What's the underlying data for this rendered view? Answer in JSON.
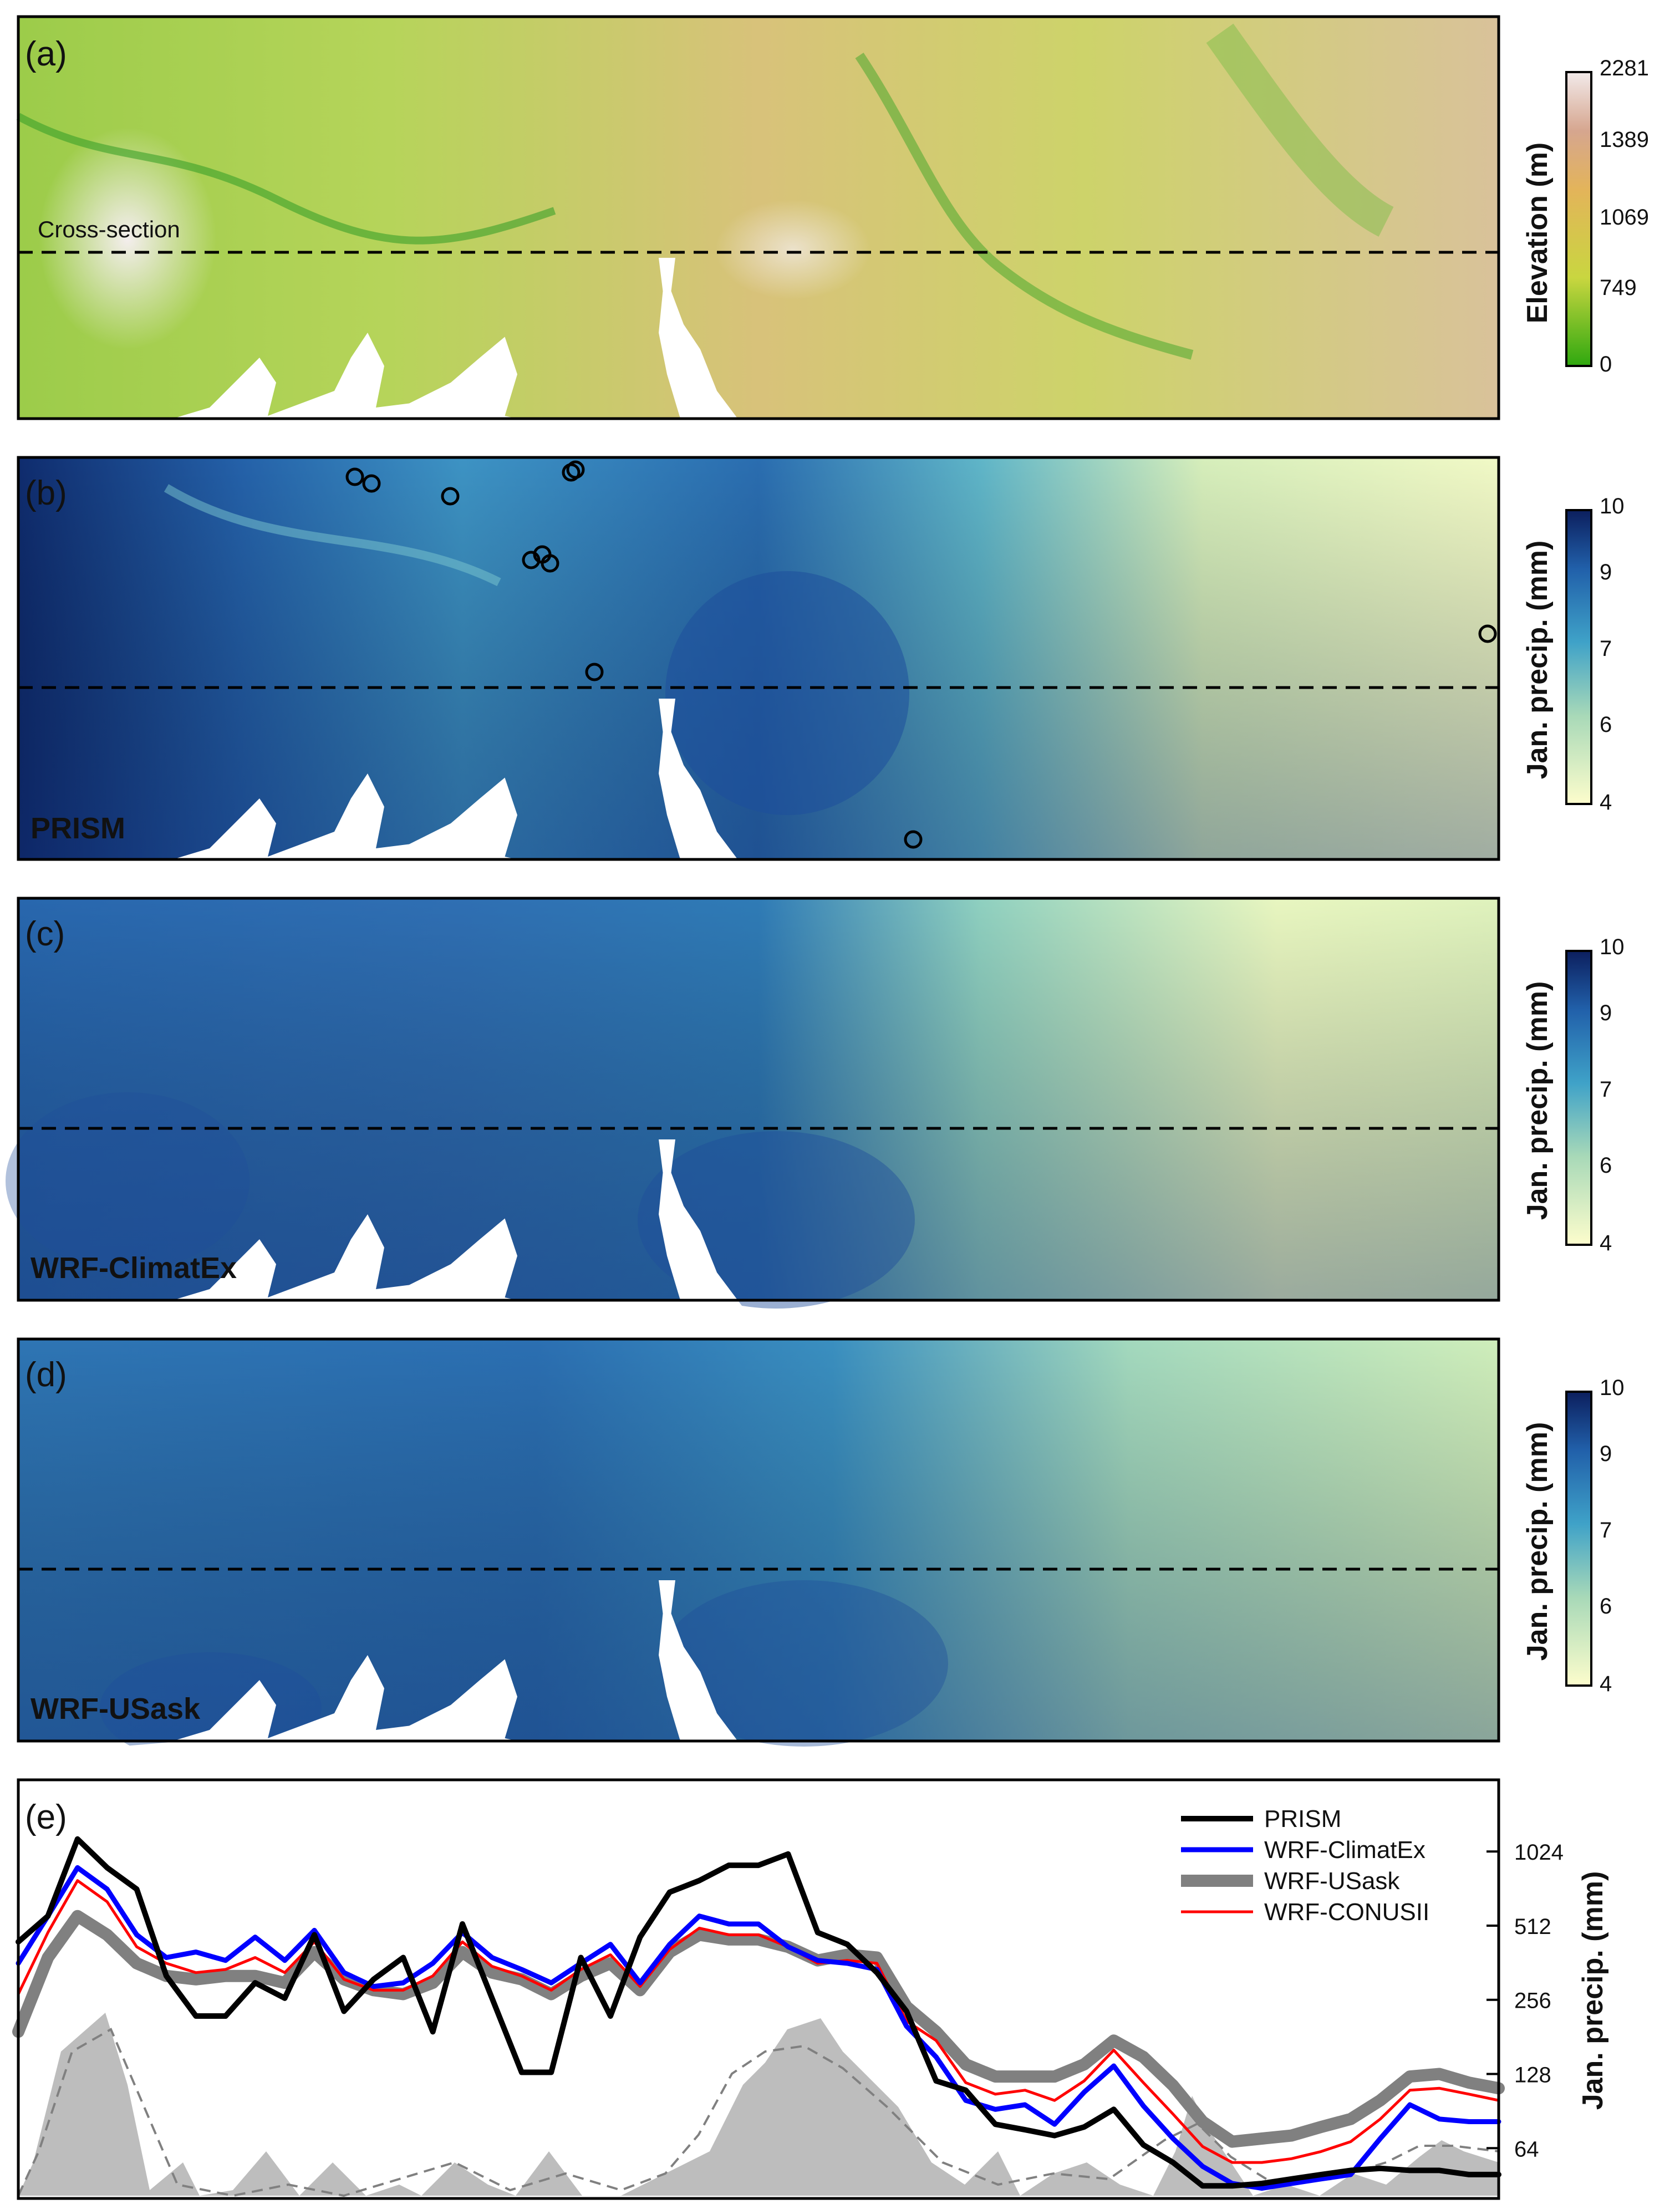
{
  "panels": {
    "a": {
      "letter": "(a)",
      "cross_section_label": "Cross-section",
      "colorbar_title": "Elevation (m)",
      "colorbar_ticks": [
        "2281",
        "1389",
        "1069",
        "749",
        "0"
      ]
    },
    "b": {
      "letter": "(b)",
      "model_label": "PRISM",
      "colorbar_title": "Jan. precip. (mm)",
      "colorbar_ticks": [
        "10",
        "9",
        "7",
        "6",
        "4"
      ]
    },
    "c": {
      "letter": "(c)",
      "model_label": "WRF-ClimatEx",
      "colorbar_title": "Jan. precip. (mm)",
      "colorbar_ticks": [
        "10",
        "9",
        "7",
        "6",
        "4"
      ]
    },
    "d": {
      "letter": "(d)",
      "model_label": "WRF-USask",
      "colorbar_title": "Jan. precip. (mm)",
      "colorbar_ticks": [
        "10",
        "9",
        "7",
        "6",
        "4"
      ]
    },
    "e": {
      "letter": "(e)",
      "ylabel": "Jan. precip. (mm)"
    }
  },
  "colors": {
    "elevation": [
      "#2fa80f",
      "#c9d640",
      "#e3b45a",
      "#d6a68f",
      "#f2eaea"
    ],
    "precip": [
      "#fdfdcc",
      "#a8d9b8",
      "#3fa2c8",
      "#2160aa",
      "#0c1f5e"
    ],
    "water": "#ffffff",
    "terrain_fill": "#bdbdbd"
  },
  "chart_data": {
    "type": "line",
    "yscale": "log",
    "yticks": [
      64,
      128,
      256,
      512,
      1024
    ],
    "ytick_labels": [
      "64",
      "128",
      "256",
      "512",
      "1024"
    ],
    "ylim": [
      40,
      2000
    ],
    "x": [
      0,
      2,
      4,
      6,
      8,
      10,
      12,
      14,
      16,
      18,
      20,
      22,
      24,
      26,
      28,
      30,
      32,
      34,
      36,
      38,
      40,
      42,
      44,
      46,
      48,
      50,
      52,
      54,
      56,
      58,
      60,
      62,
      64,
      66,
      68,
      70,
      72,
      74,
      76,
      78,
      80,
      82,
      84,
      86,
      88,
      90,
      92,
      94,
      96,
      98,
      100
    ],
    "legend_position": "top-right",
    "series": [
      {
        "name": "PRISM",
        "color": "#000000",
        "values": [
          440,
          560,
          1150,
          880,
          720,
          320,
          220,
          220,
          300,
          260,
          470,
          230,
          310,
          380,
          190,
          520,
          260,
          130,
          130,
          380,
          220,
          460,
          700,
          780,
          900,
          900,
          1000,
          480,
          430,
          330,
          230,
          120,
          110,
          80,
          76,
          72,
          78,
          92,
          66,
          56,
          45,
          45,
          46,
          48,
          50,
          52,
          53,
          52,
          52,
          50,
          50
        ]
      },
      {
        "name": "WRF-ClimatEx",
        "color": "#0000ff",
        "values": [
          360,
          560,
          880,
          720,
          470,
          380,
          400,
          370,
          460,
          370,
          490,
          330,
          290,
          300,
          360,
          480,
          380,
          340,
          300,
          360,
          430,
          300,
          430,
          560,
          520,
          520,
          420,
          370,
          360,
          340,
          200,
          150,
          100,
          92,
          96,
          80,
          108,
          138,
          95,
          70,
          54,
          46,
          44,
          46,
          48,
          50,
          70,
          96,
          84,
          82,
          82
        ]
      },
      {
        "name": "WRF-USask",
        "color": "#808080",
        "values": [
          190,
          380,
          560,
          470,
          360,
          320,
          310,
          320,
          320,
          300,
          400,
          310,
          280,
          270,
          300,
          400,
          330,
          310,
          270,
          320,
          360,
          280,
          400,
          470,
          450,
          450,
          420,
          370,
          390,
          380,
          240,
          190,
          140,
          125,
          125,
          125,
          140,
          175,
          150,
          115,
          82,
          68,
          70,
          72,
          78,
          84,
          100,
          125,
          128,
          118,
          112
        ]
      },
      {
        "name": "WRF-CONUSII",
        "color": "#ff0000",
        "values": [
          270,
          480,
          780,
          640,
          420,
          360,
          330,
          340,
          380,
          330,
          440,
          310,
          280,
          280,
          320,
          440,
          350,
          320,
          280,
          340,
          390,
          290,
          410,
          500,
          470,
          470,
          420,
          360,
          370,
          360,
          210,
          175,
          118,
          106,
          110,
          100,
          120,
          160,
          118,
          88,
          65,
          56,
          56,
          58,
          62,
          68,
          84,
          110,
          112,
          106,
          100
        ]
      }
    ]
  }
}
